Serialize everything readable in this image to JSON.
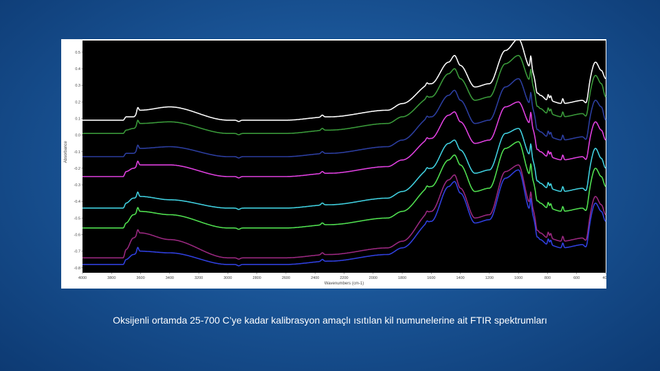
{
  "chart_data": {
    "type": "line",
    "xlabel": "Wavenumbers (cm-1)",
    "ylabel": "Absorbance",
    "x_ticks": [
      4000,
      3800,
      3600,
      3400,
      3200,
      3000,
      2800,
      2600,
      2400,
      2200,
      2000,
      1800,
      1600,
      1400,
      1200,
      1000,
      800,
      600,
      400
    ],
    "y_ticks": [
      0.5,
      0.4,
      0.3,
      0.2,
      0.1,
      0.0,
      -0.1,
      -0.2,
      -0.3,
      -0.4,
      -0.5,
      -0.6,
      -0.7,
      -0.8
    ],
    "y_tick_labels": [
      "0.5",
      "0.4",
      "0.3",
      "0.2",
      "0.1",
      "0.0",
      "-0.1",
      "-0.2",
      "-0.3",
      "-0.4",
      "-0.5",
      "-0.6",
      "-0.7",
      "-0.8"
    ],
    "xlim": [
      4000,
      400
    ],
    "ylim": [
      -0.83,
      0.57
    ],
    "x_reversed": true,
    "plot_background": "#000000",
    "series": [
      {
        "color": "#ffffff",
        "baseline": 0.09,
        "profile": [
          [
            4000,
            0
          ],
          [
            3720,
            0
          ],
          [
            3700,
            0.02
          ],
          [
            3650,
            0.02
          ],
          [
            3600,
            0.06
          ],
          [
            3400,
            0.08
          ],
          [
            3000,
            0.0
          ],
          [
            2600,
            0.0
          ],
          [
            2300,
            0.02
          ],
          [
            1900,
            0.06
          ],
          [
            1800,
            0.1
          ],
          [
            1600,
            0.22
          ],
          [
            1480,
            0.35
          ],
          [
            1440,
            0.39
          ],
          [
            1400,
            0.33
          ],
          [
            1300,
            0.2
          ],
          [
            1200,
            0.22
          ],
          [
            1090,
            0.42
          ],
          [
            1000,
            0.49
          ],
          [
            920,
            0.32
          ],
          [
            850,
            0.15
          ],
          [
            800,
            0.12
          ],
          [
            700,
            0.1
          ],
          [
            550,
            0.12
          ],
          [
            470,
            0.35
          ],
          [
            430,
            0.3
          ],
          [
            400,
            0.25
          ]
        ]
      },
      {
        "color": "#3a9a3a",
        "baseline": 0.01,
        "profile": [
          [
            4000,
            0
          ],
          [
            3720,
            0
          ],
          [
            3700,
            0.02
          ],
          [
            3650,
            0.03
          ],
          [
            3600,
            0.06
          ],
          [
            3400,
            0.07
          ],
          [
            3000,
            0.0
          ],
          [
            2600,
            0.0
          ],
          [
            2300,
            0.02
          ],
          [
            1900,
            0.06
          ],
          [
            1800,
            0.1
          ],
          [
            1600,
            0.22
          ],
          [
            1480,
            0.36
          ],
          [
            1440,
            0.39
          ],
          [
            1400,
            0.33
          ],
          [
            1300,
            0.2
          ],
          [
            1200,
            0.22
          ],
          [
            1090,
            0.42
          ],
          [
            1000,
            0.47
          ],
          [
            920,
            0.32
          ],
          [
            850,
            0.15
          ],
          [
            800,
            0.12
          ],
          [
            700,
            0.1
          ],
          [
            550,
            0.12
          ],
          [
            470,
            0.35
          ],
          [
            430,
            0.3
          ],
          [
            400,
            0.22
          ]
        ]
      },
      {
        "color": "#2c3ea0",
        "baseline": -0.13,
        "profile": [
          [
            4000,
            0
          ],
          [
            3720,
            0
          ],
          [
            3700,
            0.02
          ],
          [
            3650,
            0.02
          ],
          [
            3600,
            0.05
          ],
          [
            3400,
            0.06
          ],
          [
            3000,
            0.0
          ],
          [
            2600,
            0.0
          ],
          [
            2300,
            0.02
          ],
          [
            1900,
            0.06
          ],
          [
            1800,
            0.1
          ],
          [
            1600,
            0.24
          ],
          [
            1480,
            0.37
          ],
          [
            1440,
            0.4
          ],
          [
            1400,
            0.34
          ],
          [
            1300,
            0.2
          ],
          [
            1200,
            0.22
          ],
          [
            1090,
            0.42
          ],
          [
            1000,
            0.47
          ],
          [
            920,
            0.32
          ],
          [
            850,
            0.15
          ],
          [
            800,
            0.12
          ],
          [
            700,
            0.1
          ],
          [
            550,
            0.12
          ],
          [
            470,
            0.34
          ],
          [
            430,
            0.3
          ],
          [
            400,
            0.22
          ]
        ]
      },
      {
        "color": "#e040e0",
        "baseline": -0.25,
        "profile": [
          [
            4000,
            0
          ],
          [
            3720,
            0
          ],
          [
            3700,
            0.03
          ],
          [
            3650,
            0.05
          ],
          [
            3600,
            0.07
          ],
          [
            3400,
            0.07
          ],
          [
            3000,
            0.0
          ],
          [
            2600,
            0.0
          ],
          [
            2300,
            0.02
          ],
          [
            1900,
            0.06
          ],
          [
            1800,
            0.1
          ],
          [
            1600,
            0.23
          ],
          [
            1480,
            0.37
          ],
          [
            1440,
            0.39
          ],
          [
            1400,
            0.33
          ],
          [
            1300,
            0.2
          ],
          [
            1200,
            0.22
          ],
          [
            1090,
            0.42
          ],
          [
            1000,
            0.45
          ],
          [
            920,
            0.32
          ],
          [
            850,
            0.15
          ],
          [
            800,
            0.12
          ],
          [
            700,
            0.1
          ],
          [
            550,
            0.12
          ],
          [
            470,
            0.33
          ],
          [
            430,
            0.28
          ],
          [
            400,
            0.22
          ]
        ]
      },
      {
        "color": "#40d0e0",
        "baseline": -0.44,
        "profile": [
          [
            4000,
            0
          ],
          [
            3720,
            0
          ],
          [
            3700,
            0.03
          ],
          [
            3650,
            0.06
          ],
          [
            3600,
            0.07
          ],
          [
            3400,
            0.05
          ],
          [
            3000,
            0.0
          ],
          [
            2600,
            0.0
          ],
          [
            2300,
            0.02
          ],
          [
            1900,
            0.06
          ],
          [
            1800,
            0.1
          ],
          [
            1600,
            0.24
          ],
          [
            1480,
            0.39
          ],
          [
            1440,
            0.41
          ],
          [
            1400,
            0.35
          ],
          [
            1300,
            0.21
          ],
          [
            1200,
            0.23
          ],
          [
            1090,
            0.45
          ],
          [
            1000,
            0.48
          ],
          [
            920,
            0.32
          ],
          [
            850,
            0.15
          ],
          [
            800,
            0.12
          ],
          [
            700,
            0.1
          ],
          [
            550,
            0.12
          ],
          [
            470,
            0.36
          ],
          [
            430,
            0.3
          ],
          [
            400,
            0.24
          ]
        ]
      },
      {
        "color": "#50e050",
        "baseline": -0.56,
        "profile": [
          [
            4000,
            0
          ],
          [
            3720,
            0
          ],
          [
            3700,
            0.03
          ],
          [
            3650,
            0.08
          ],
          [
            3600,
            0.1
          ],
          [
            3400,
            0.08
          ],
          [
            3000,
            0.0
          ],
          [
            2600,
            0.0
          ],
          [
            2300,
            0.02
          ],
          [
            1900,
            0.06
          ],
          [
            1800,
            0.1
          ],
          [
            1600,
            0.25
          ],
          [
            1480,
            0.41
          ],
          [
            1440,
            0.44
          ],
          [
            1400,
            0.38
          ],
          [
            1300,
            0.22
          ],
          [
            1200,
            0.24
          ],
          [
            1090,
            0.48
          ],
          [
            1000,
            0.52
          ],
          [
            920,
            0.32
          ],
          [
            850,
            0.15
          ],
          [
            800,
            0.12
          ],
          [
            700,
            0.1
          ],
          [
            550,
            0.12
          ],
          [
            470,
            0.36
          ],
          [
            430,
            0.31
          ],
          [
            400,
            0.25
          ]
        ]
      },
      {
        "color": "#9a2880",
        "baseline": -0.74,
        "profile": [
          [
            4000,
            0
          ],
          [
            3720,
            0
          ],
          [
            3700,
            0.05
          ],
          [
            3650,
            0.12
          ],
          [
            3600,
            0.15
          ],
          [
            3400,
            0.11
          ],
          [
            3000,
            0.0
          ],
          [
            2600,
            0.0
          ],
          [
            2300,
            0.02
          ],
          [
            1900,
            0.06
          ],
          [
            1800,
            0.1
          ],
          [
            1600,
            0.28
          ],
          [
            1480,
            0.47
          ],
          [
            1440,
            0.5
          ],
          [
            1400,
            0.42
          ],
          [
            1300,
            0.24
          ],
          [
            1200,
            0.26
          ],
          [
            1090,
            0.52
          ],
          [
            1000,
            0.56
          ],
          [
            920,
            0.33
          ],
          [
            850,
            0.15
          ],
          [
            800,
            0.12
          ],
          [
            700,
            0.1
          ],
          [
            550,
            0.12
          ],
          [
            470,
            0.37
          ],
          [
            430,
            0.32
          ],
          [
            400,
            0.26
          ]
        ]
      },
      {
        "color": "#3040e0",
        "baseline": -0.78,
        "profile": [
          [
            4000,
            0
          ],
          [
            3720,
            0
          ],
          [
            3700,
            0.03
          ],
          [
            3650,
            0.06
          ],
          [
            3600,
            0.08
          ],
          [
            3400,
            0.07
          ],
          [
            3000,
            0.0
          ],
          [
            2600,
            0.0
          ],
          [
            2300,
            0.02
          ],
          [
            1900,
            0.06
          ],
          [
            1800,
            0.1
          ],
          [
            1600,
            0.26
          ],
          [
            1480,
            0.47
          ],
          [
            1440,
            0.5
          ],
          [
            1400,
            0.43
          ],
          [
            1300,
            0.25
          ],
          [
            1200,
            0.27
          ],
          [
            1090,
            0.52
          ],
          [
            1000,
            0.57
          ],
          [
            920,
            0.33
          ],
          [
            850,
            0.15
          ],
          [
            800,
            0.12
          ],
          [
            700,
            0.1
          ],
          [
            550,
            0.12
          ],
          [
            470,
            0.37
          ],
          [
            430,
            0.32
          ],
          [
            400,
            0.26
          ]
        ]
      }
    ]
  },
  "caption": "Oksijenli ortamda 25-700 C’ye kadar kalibrasyon amaçlı ısıtılan kil numunelerine ait FTIR spektrumları"
}
